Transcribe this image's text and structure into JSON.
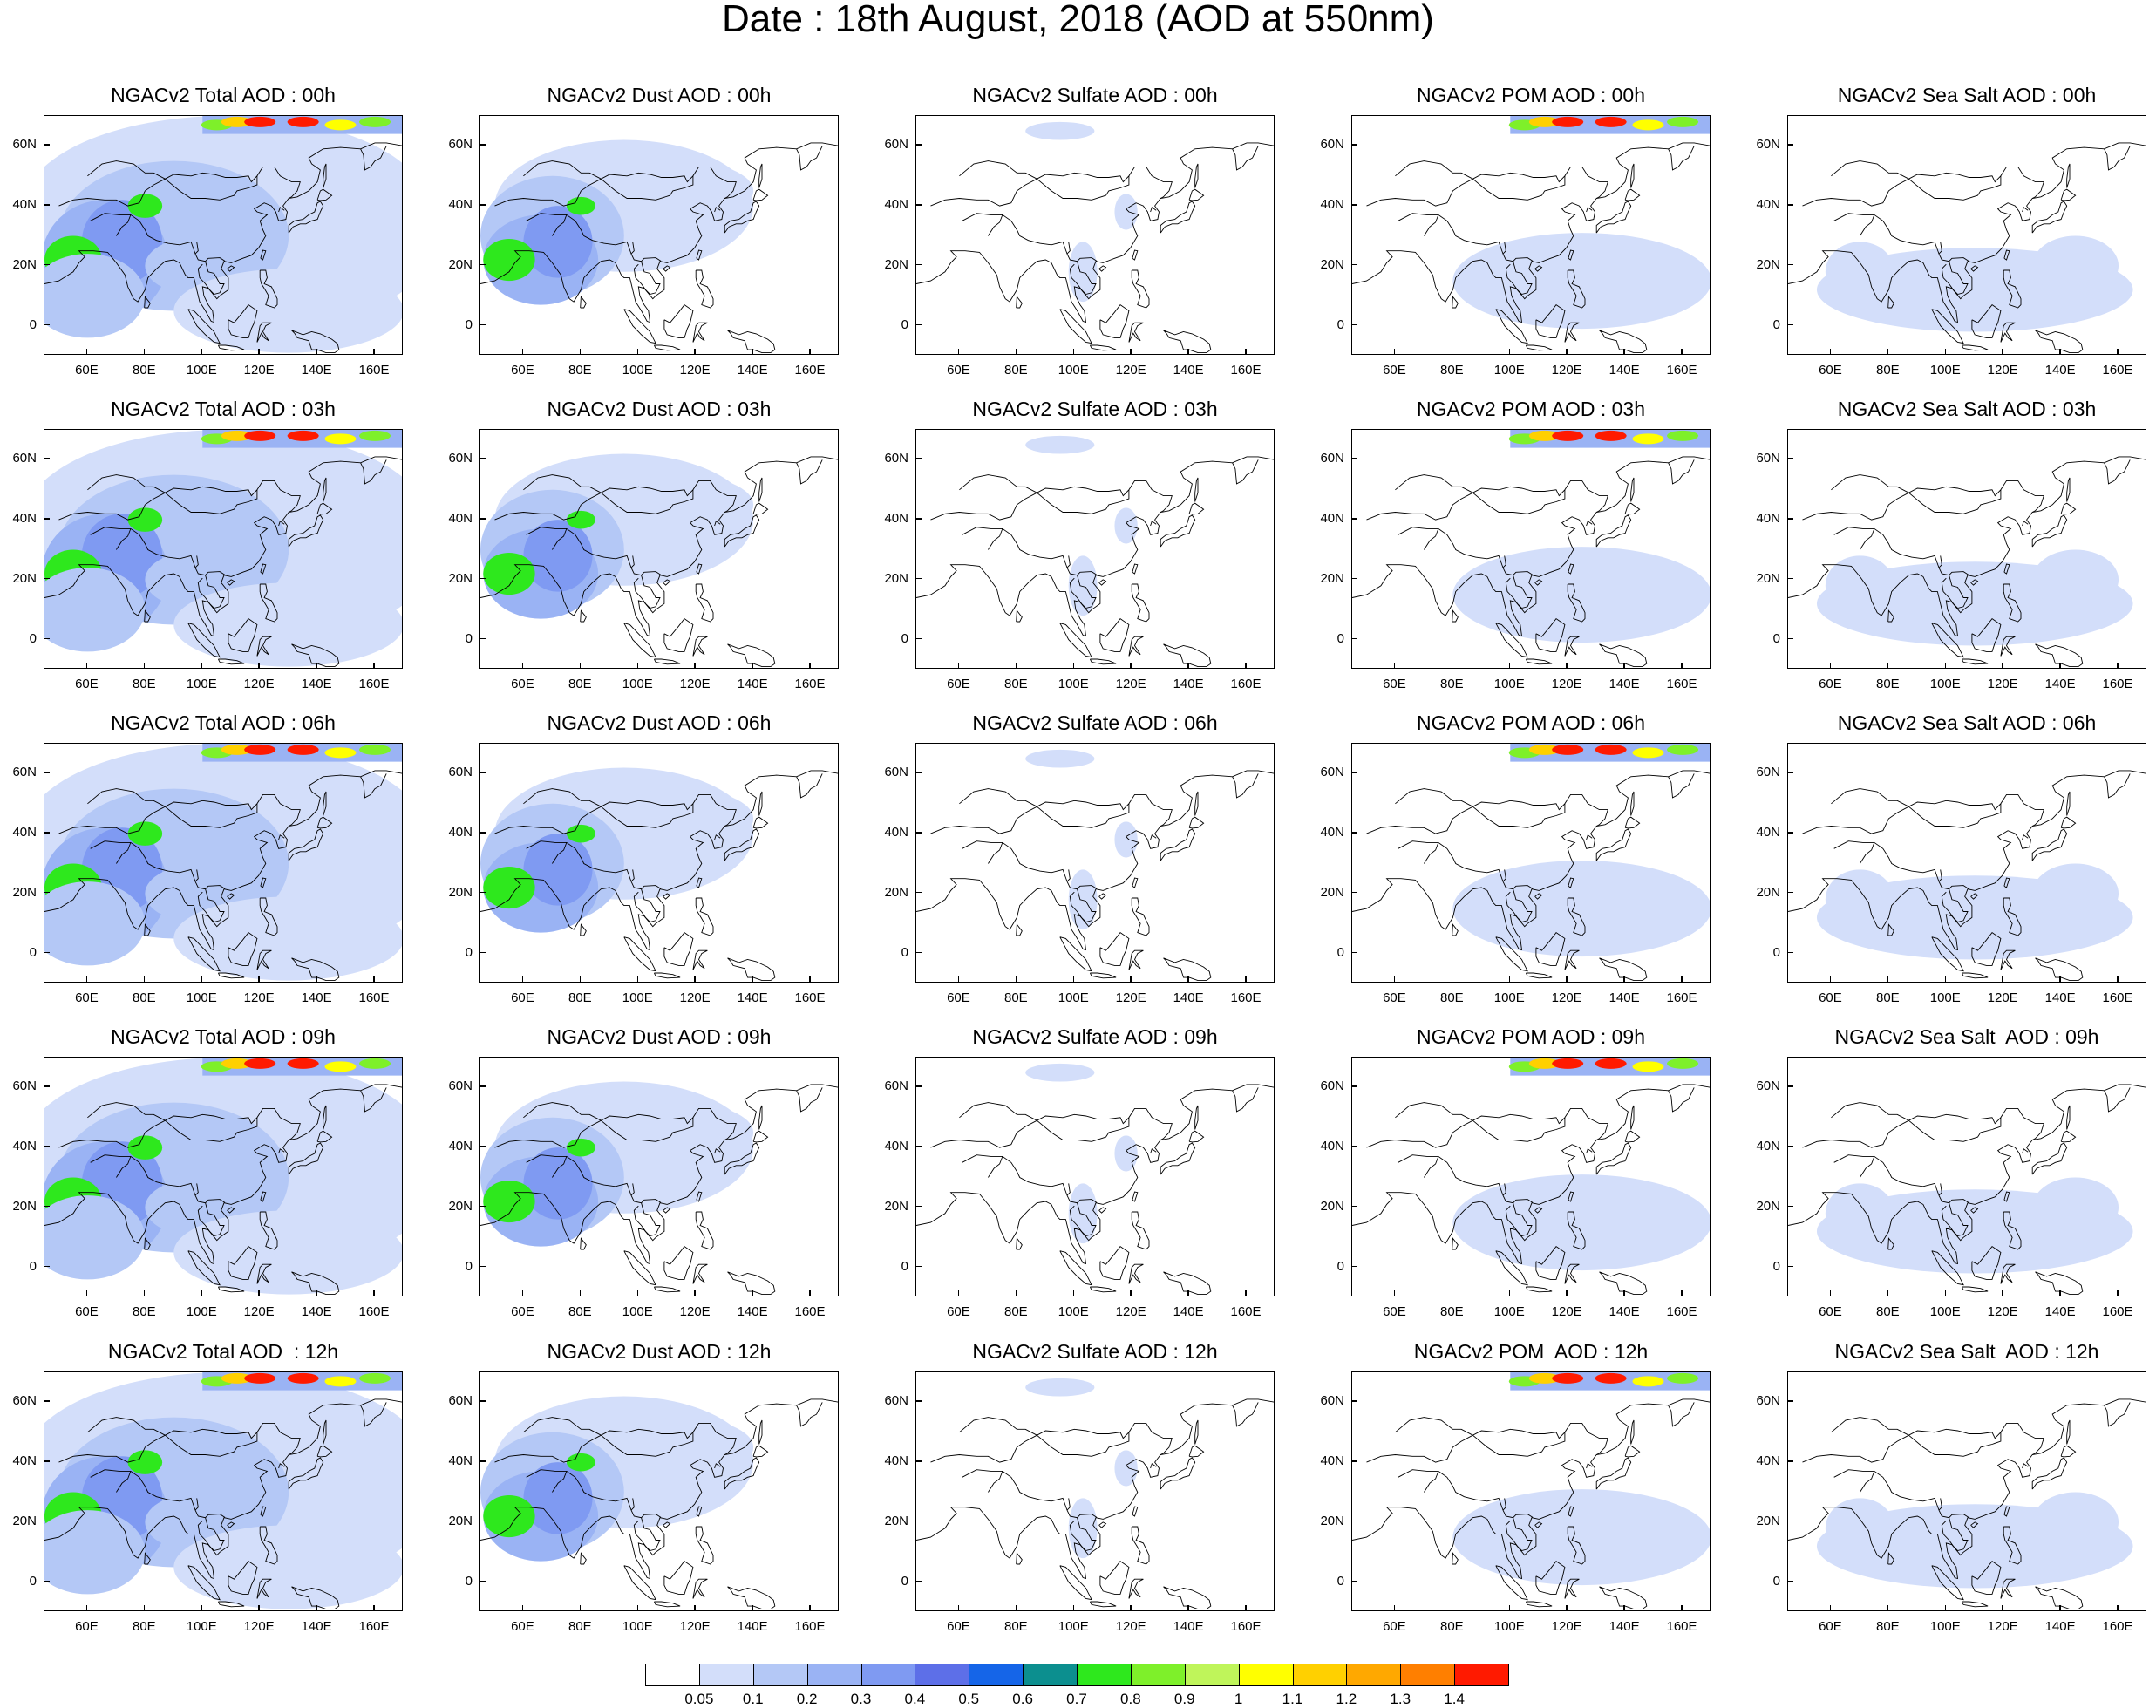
{
  "title": "Date : 18th August, 2018 (AOD at 550nm)",
  "panel_titles": [
    [
      "NGACv2 Total AOD : 00h",
      "NGACv2 Dust AOD : 00h",
      "NGACv2 Sulfate AOD : 00h",
      "NGACv2 POM AOD : 00h",
      "NGACv2 Sea Salt AOD : 00h"
    ],
    [
      "NGACv2 Total AOD : 03h",
      "NGACv2 Dust AOD : 03h",
      "NGACv2 Sulfate AOD : 03h",
      "NGACv2 POM AOD : 03h",
      "NGACv2 Sea Salt AOD : 03h"
    ],
    [
      "NGACv2 Total AOD : 06h",
      "NGACv2 Dust AOD : 06h",
      "NGACv2 Sulfate AOD : 06h",
      "NGACv2 POM AOD : 06h",
      "NGACv2 Sea Salt AOD : 06h"
    ],
    [
      "NGACv2 Total AOD : 09h",
      "NGACv2 Dust AOD : 09h",
      "NGACv2 Sulfate AOD : 09h",
      "NGACv2 POM AOD : 09h",
      "NGACv2 Sea Salt  AOD : 09h"
    ],
    [
      "NGACv2 Total AOD  : 12h",
      "NGACv2 Dust AOD : 12h",
      "NGACv2 Sulfate AOD : 12h",
      "NGACv2 POM  AOD : 12h",
      "NGACv2 Sea Salt  AOD : 12h"
    ]
  ],
  "lat_labels": [
    "60N",
    "40N",
    "20N",
    "0"
  ],
  "lat_values": [
    60,
    40,
    20,
    0
  ],
  "lon_labels": [
    "60E",
    "80E",
    "100E",
    "120E",
    "140E",
    "160E"
  ],
  "lon_values": [
    60,
    80,
    100,
    120,
    140,
    160
  ],
  "map_extent": {
    "lon": [
      45,
      170
    ],
    "lat": [
      -10,
      70
    ]
  },
  "colorbar": {
    "labels": [
      "0.05",
      "0.1",
      "0.2",
      "0.3",
      "0.4",
      "0.5",
      "0.6",
      "0.7",
      "0.8",
      "0.9",
      "1",
      "1.1",
      "1.2",
      "1.3",
      "1.4"
    ],
    "colors": [
      "#ffffff",
      "#d3defa",
      "#b4c8f6",
      "#9ab3f4",
      "#7f9af2",
      "#5d6fe8",
      "#1565e8",
      "#0c8f8f",
      "#2ee81d",
      "#7ef02a",
      "#bff55a",
      "#ffff00",
      "#ffd000",
      "#ffa800",
      "#ff7f00",
      "#ff1a00"
    ]
  }
}
